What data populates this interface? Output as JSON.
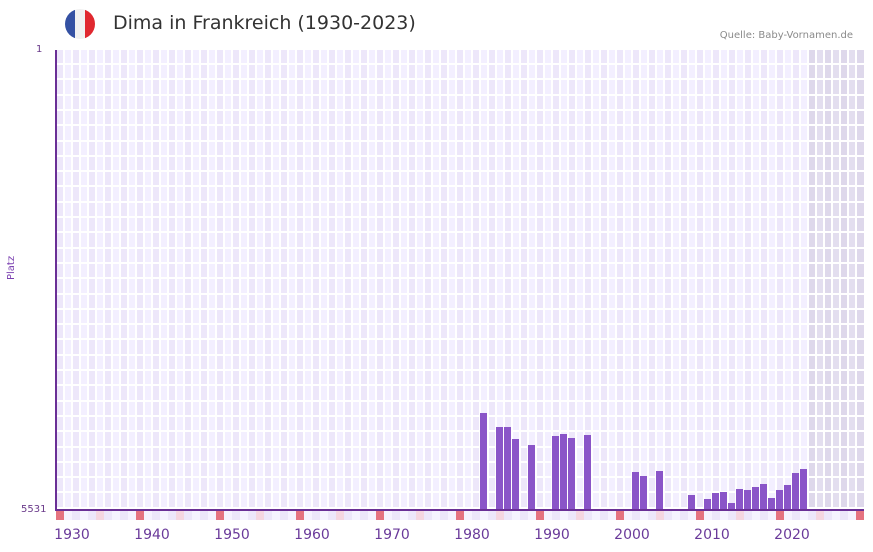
{
  "header": {
    "title": "Dima in Frankreich (1930-2023)",
    "source": "Quelle: Baby-Vornamen.de",
    "flag_icon": "france-flag-icon",
    "flag_colors": [
      "#3451a3",
      "#f1f1f1",
      "#e0282f"
    ]
  },
  "axis": {
    "y_title": "Platz",
    "y_top": "1",
    "y_bottom": "5531",
    "x_labels": [
      "1930",
      "1940",
      "1950",
      "1960",
      "1970",
      "1980",
      "1990",
      "2000",
      "2010",
      "2020"
    ]
  },
  "colors": {
    "bar": "#8a55c8",
    "axis": "#6a2f96",
    "plot_bg": "#f3efff",
    "decade_marker": "#e57380",
    "half_decade_marker": "#f5d6e0"
  },
  "chart_data": {
    "type": "bar",
    "title": "Dima in Frankreich (1930-2023)",
    "xlabel": "",
    "ylabel": "Platz",
    "ylim": [
      5531,
      1
    ],
    "y_inverted": true,
    "x_range": [
      1928,
      2028
    ],
    "grid": true,
    "legend": null,
    "source": "Quelle: Baby-Vornamen.de",
    "categories": [
      1981,
      1983,
      1984,
      1985,
      1987,
      1990,
      1991,
      1992,
      1994,
      2000,
      2001,
      2003,
      2007,
      2009,
      2010,
      2011,
      2012,
      2013,
      2014,
      2015,
      2016,
      2017,
      2018,
      2019,
      2020,
      2021
    ],
    "values": [
      4364,
      4532,
      4532,
      4677,
      4749,
      4641,
      4617,
      4665,
      4629,
      5074,
      5122,
      5062,
      5351,
      5399,
      5327,
      5315,
      5447,
      5279,
      5291,
      5255,
      5219,
      5387,
      5291,
      5231,
      5086,
      5038
    ]
  }
}
